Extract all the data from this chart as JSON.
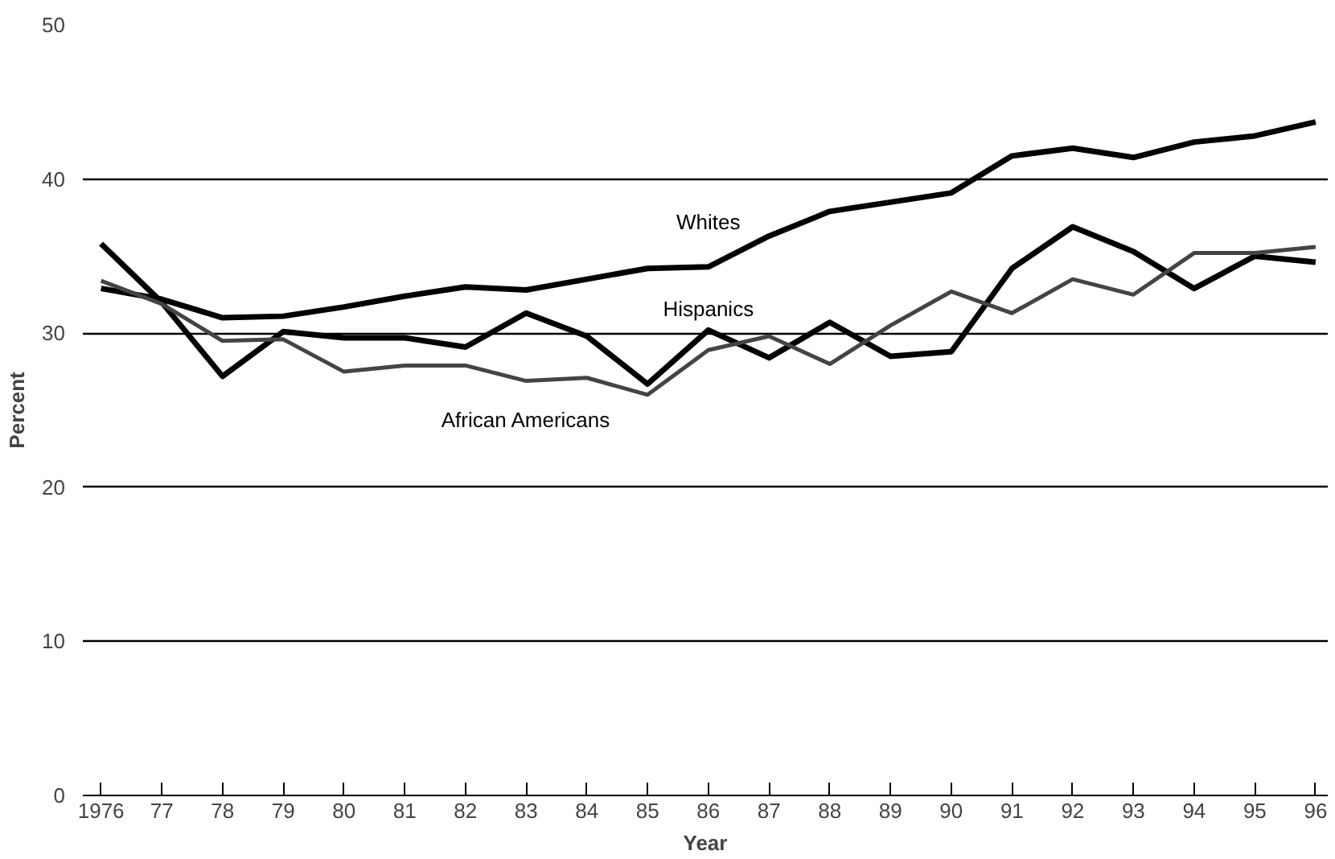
{
  "chart_data": {
    "type": "line",
    "xlabel": "Year",
    "ylabel": "Percent",
    "x": [
      1976,
      1977,
      1978,
      1979,
      1980,
      1981,
      1982,
      1983,
      1984,
      1985,
      1986,
      1987,
      1988,
      1989,
      1990,
      1991,
      1992,
      1993,
      1994,
      1995,
      1996
    ],
    "series": [
      {
        "name": "Whites",
        "color": "#000000",
        "values": [
          32.9,
          32.2,
          31,
          31.1,
          31.7,
          32.4,
          33,
          32.8,
          33.5,
          34.2,
          34.3,
          36.3,
          37.9,
          38.5,
          39.1,
          41.5,
          42,
          41.4,
          42.4,
          42.8,
          43.7
        ]
      },
      {
        "name": "Hispanics",
        "color": "#000000",
        "values": [
          35.8,
          32,
          27.2,
          30.1,
          29.7,
          29.7,
          29.1,
          31.3,
          29.8,
          26.7,
          30.2,
          28.4,
          30.7,
          28.5,
          28.8,
          34.2,
          36.9,
          35.3,
          32.9,
          35,
          34.6
        ]
      },
      {
        "name": "African Americans",
        "color": "#444444",
        "values": [
          33.4,
          31.9,
          29.5,
          29.6,
          27.5,
          27.9,
          27.9,
          26.9,
          27.1,
          26,
          28.9,
          29.8,
          28,
          30.5,
          32.7,
          31.3,
          33.5,
          32.5,
          35.2,
          35.2,
          35.6
        ]
      }
    ],
    "xlim": [
      1975.7,
      1996.2
    ],
    "ylim": [
      0,
      50
    ],
    "xticks": [
      1976,
      {
        "value": 1977,
        "label": "77"
      },
      {
        "value": 1978,
        "label": "78"
      },
      {
        "value": 1979,
        "label": "79"
      },
      {
        "value": 1980,
        "label": "80"
      },
      {
        "value": 1981,
        "label": "81"
      },
      {
        "value": 1982,
        "label": "82"
      },
      {
        "value": 1983,
        "label": "83"
      },
      {
        "value": 1984,
        "label": "84"
      },
      {
        "value": 1985,
        "label": "85"
      },
      {
        "value": 1986,
        "label": "86"
      },
      {
        "value": 1987,
        "label": "87"
      },
      {
        "value": 1988,
        "label": "88"
      },
      {
        "value": 1989,
        "label": "89"
      },
      {
        "value": 1990,
        "label": "90"
      },
      {
        "value": 1991,
        "label": "91"
      },
      {
        "value": 1992,
        "label": "92"
      },
      {
        "value": 1993,
        "label": "93"
      },
      {
        "value": 1994,
        "label": "94"
      },
      {
        "value": 1995,
        "label": "95"
      },
      {
        "value": 1996,
        "label": "96"
      }
    ],
    "yticks": [
      0,
      10,
      20,
      30,
      40,
      50
    ],
    "grid": "y",
    "line_style": "solid",
    "marker": "none"
  }
}
